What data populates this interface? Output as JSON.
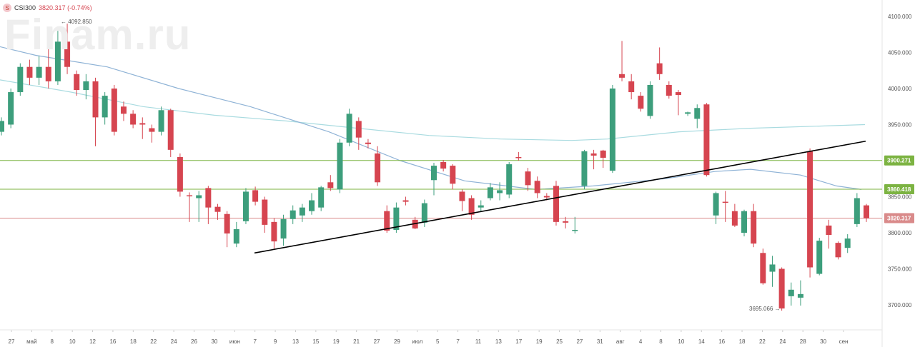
{
  "header": {
    "badge": "S",
    "symbol": "CSI300",
    "price": "3820.317 (-0.74%)"
  },
  "watermark": "Finam.ru",
  "colors": {
    "up": "#3d9e7c",
    "down": "#d64550",
    "ma_fast": "#8fb3d6",
    "ma_slow": "#a9dbe0",
    "green_line": "#7cb342",
    "red_line": "#d98a8a",
    "trend": "#000000"
  },
  "chart_data": {
    "type": "candlestick",
    "ylim": [
      3665,
      4115
    ],
    "y_ticks": [
      3700,
      3750,
      3800,
      3850,
      3900,
      3950,
      4000,
      4050,
      4100
    ],
    "y_tick_labels": [
      "3700.000",
      "3750.000",
      "3800.000",
      "3850.000",
      "3900.000",
      "3950.000",
      "4000.000",
      "4050.000",
      "4100.000"
    ],
    "x_labels": [
      "27",
      "май",
      "8",
      "10",
      "12",
      "16",
      "18",
      "22",
      "24",
      "26",
      "30",
      "июн",
      "7",
      "9",
      "13",
      "15",
      "19",
      "21",
      "27",
      "29",
      "июл",
      "5",
      "7",
      "11",
      "13",
      "17",
      "19",
      "25",
      "27",
      "31",
      "авг",
      "4",
      "8",
      "10",
      "14",
      "16",
      "18",
      "22",
      "24",
      "28",
      "30",
      "сен"
    ],
    "candles": [
      [
        3940,
        3955,
        3935,
        3960
      ],
      [
        3950,
        3995,
        3945,
        4000
      ],
      [
        3995,
        4030,
        3990,
        4035
      ],
      [
        4030,
        4015,
        4005,
        4040
      ],
      [
        4015,
        4030,
        4005,
        4045
      ],
      [
        4030,
        4010,
        4000,
        4060
      ],
      [
        4010,
        4065,
        4005,
        4080
      ],
      [
        4065,
        4030,
        4020,
        4090
      ],
      [
        4020,
        3998,
        3990,
        4025
      ],
      [
        3998,
        4010,
        3985,
        4020
      ],
      [
        4010,
        3960,
        3920,
        4015
      ],
      [
        3960,
        3990,
        3950,
        3995
      ],
      [
        4000,
        3940,
        3935,
        4005
      ],
      [
        3975,
        3965,
        3955,
        3982
      ],
      [
        3965,
        3950,
        3945,
        3970
      ],
      [
        3952,
        3950,
        3930,
        3960
      ],
      [
        3945,
        3940,
        3925,
        3950
      ],
      [
        3940,
        3970,
        3935,
        3975
      ],
      [
        3970,
        3915,
        3905,
        3972
      ],
      [
        3905,
        3857,
        3850,
        3910
      ],
      [
        3852,
        3851,
        3815,
        3856
      ],
      [
        3848,
        3852,
        3815,
        3858
      ],
      [
        3862,
        3835,
        3812,
        3865
      ],
      [
        3836,
        3829,
        3818,
        3840
      ],
      [
        3826,
        3799,
        3780,
        3830
      ],
      [
        3785,
        3805,
        3780,
        3815
      ],
      [
        3816,
        3857,
        3812,
        3862
      ],
      [
        3859,
        3843,
        3838,
        3864
      ],
      [
        3846,
        3811,
        3800,
        3850
      ],
      [
        3815,
        3788,
        3778,
        3820
      ],
      [
        3792,
        3819,
        3782,
        3825
      ],
      [
        3819,
        3831,
        3812,
        3838
      ],
      [
        3824,
        3835,
        3815,
        3840
      ],
      [
        3830,
        3845,
        3825,
        3855
      ],
      [
        3835,
        3863,
        3830,
        3865
      ],
      [
        3870,
        3862,
        3858,
        3880
      ],
      [
        3860,
        3925,
        3855,
        3930
      ],
      [
        3925,
        3965,
        3920,
        3972
      ],
      [
        3955,
        3932,
        3915,
        3960
      ],
      [
        3925,
        3923,
        3917,
        3930
      ],
      [
        3910,
        3870,
        3865,
        3920
      ],
      [
        3830,
        3803,
        3800,
        3838
      ],
      [
        3804,
        3835,
        3800,
        3842
      ],
      [
        3845,
        3843,
        3838,
        3850
      ],
      [
        3818,
        3806,
        3805,
        3822
      ],
      [
        3814,
        3841,
        3808,
        3846
      ],
      [
        3873,
        3893,
        3852,
        3897
      ],
      [
        3898,
        3889,
        3885,
        3901
      ],
      [
        3893,
        3868,
        3860,
        3895
      ],
      [
        3857,
        3844,
        3830,
        3860
      ],
      [
        3848,
        3825,
        3818,
        3852
      ],
      [
        3835,
        3838,
        3830,
        3845
      ],
      [
        3848,
        3863,
        3845,
        3869
      ],
      [
        3855,
        3859,
        3845,
        3870
      ],
      [
        3853,
        3895,
        3848,
        3898
      ],
      [
        3905,
        3904,
        3900,
        3912
      ],
      [
        3885,
        3866,
        3858,
        3890
      ],
      [
        3872,
        3855,
        3848,
        3878
      ],
      [
        3851,
        3849,
        3845,
        3855
      ],
      [
        3865,
        3815,
        3810,
        3872
      ],
      [
        3816,
        3814,
        3806,
        3822
      ],
      [
        3803,
        3804,
        3799,
        3822
      ],
      [
        3865,
        3913,
        3860,
        3915
      ],
      [
        3910,
        3907,
        3888,
        3915
      ],
      [
        3914,
        3904,
        3890,
        3915
      ],
      [
        3886,
        4000,
        3883,
        4005
      ],
      [
        4020,
        4015,
        4010,
        4066
      ],
      [
        4010,
        3995,
        3985,
        4020
      ],
      [
        3990,
        3972,
        3968,
        3995
      ],
      [
        3962,
        4005,
        3958,
        4010
      ],
      [
        4035,
        4020,
        4012,
        4057
      ],
      [
        4005,
        3990,
        3986,
        4010
      ],
      [
        3995,
        3991,
        3963,
        3998
      ],
      [
        3965,
        3967,
        3962,
        3968
      ],
      [
        3958,
        3973,
        3945,
        3978
      ],
      [
        3978,
        3880,
        3878,
        3980
      ],
      [
        3824,
        3855,
        3812,
        3857
      ],
      [
        3843,
        3842,
        3815,
        3858
      ],
      [
        3830,
        3810,
        3808,
        3840
      ],
      [
        3800,
        3830,
        3795,
        3832
      ],
      [
        3830,
        3785,
        3780,
        3840
      ],
      [
        3772,
        3730,
        3728,
        3778
      ],
      [
        3746,
        3756,
        3725,
        3768
      ],
      [
        3750,
        3695,
        3692,
        3752
      ],
      [
        3712,
        3721,
        3699,
        3731
      ],
      [
        3710,
        3715,
        3699,
        3734
      ],
      [
        3913,
        3752,
        3738,
        3917
      ],
      [
        3743,
        3789,
        3741,
        3793
      ],
      [
        3810,
        3797,
        3778,
        3818
      ],
      [
        3786,
        3766,
        3763,
        3788
      ],
      [
        3779,
        3792,
        3772,
        3798
      ],
      [
        3812,
        3848,
        3808,
        3855
      ],
      [
        3838,
        3820,
        3815,
        3840
      ]
    ],
    "ma_fast": [
      [
        0,
        4058
      ],
      [
        50,
        4046
      ],
      [
        150,
        4030
      ],
      [
        250,
        4000
      ],
      [
        350,
        3975
      ],
      [
        460,
        3940
      ],
      [
        560,
        3900
      ],
      [
        650,
        3872
      ],
      [
        750,
        3860
      ],
      [
        830,
        3865
      ],
      [
        930,
        3875
      ],
      [
        1000,
        3885
      ],
      [
        1050,
        3888
      ],
      [
        1120,
        3880
      ],
      [
        1170,
        3865
      ],
      [
        1205,
        3860
      ]
    ],
    "ma_slow": [
      [
        0,
        4012
      ],
      [
        100,
        3995
      ],
      [
        200,
        3975
      ],
      [
        300,
        3963
      ],
      [
        400,
        3955
      ],
      [
        500,
        3945
      ],
      [
        600,
        3935
      ],
      [
        700,
        3930
      ],
      [
        800,
        3928
      ],
      [
        850,
        3930
      ],
      [
        950,
        3940
      ],
      [
        1050,
        3945
      ],
      [
        1150,
        3948
      ],
      [
        1210,
        3950
      ]
    ],
    "hlines": [
      {
        "value": 3900.271,
        "label": "3900.271",
        "color": "#7cb342"
      },
      {
        "value": 3860.418,
        "label": "3860.418",
        "color": "#7cb342"
      },
      {
        "value": 3820.317,
        "label": "3820.317",
        "color": "#d98a8a"
      }
    ],
    "trendline": [
      [
        3772,
        3772
      ],
      [
        3927,
        3927
      ]
    ],
    "annotations": {
      "high": "← 4092.850",
      "low": "3695.066 →"
    }
  }
}
